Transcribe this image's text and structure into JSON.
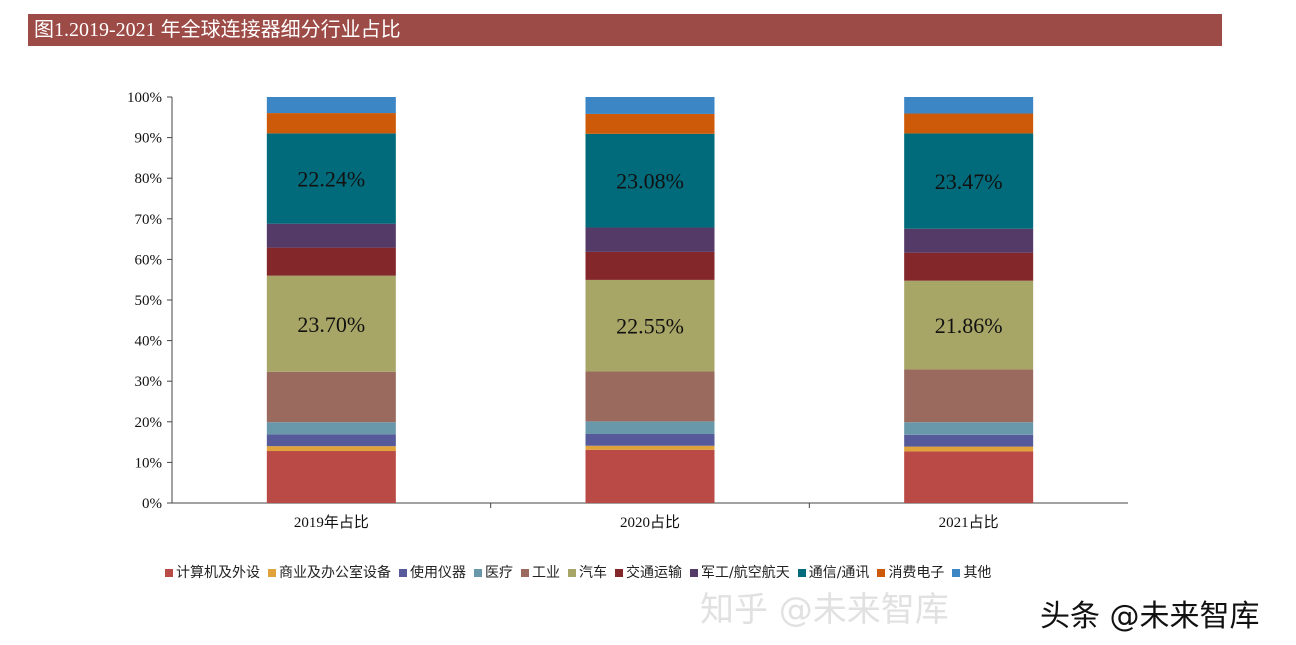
{
  "title": "图1.2019-2021 年全球连接器细分行业占比",
  "watermark": {
    "line1": "知乎 @未来智库",
    "line2": "头条 @未来智库"
  },
  "chart_data": {
    "type": "bar",
    "stacked": true,
    "title": "",
    "xlabel": "",
    "ylabel": "",
    "ylim": [
      0,
      100
    ],
    "y_ticks": [
      "0%",
      "10%",
      "20%",
      "30%",
      "40%",
      "50%",
      "60%",
      "70%",
      "80%",
      "90%",
      "100%"
    ],
    "categories": [
      "2019年占比",
      "2020占比",
      "2021占比"
    ],
    "legend_position": "bottom",
    "grid": false,
    "series": [
      {
        "name": "计算机及外设",
        "color": "#b94a45",
        "values": [
          12.8,
          13.1,
          12.7
        ]
      },
      {
        "name": "商业及办公室设备",
        "color": "#e0a23a",
        "values": [
          1.2,
          1.0,
          1.2
        ]
      },
      {
        "name": "使用仪器",
        "color": "#56599a",
        "values": [
          2.9,
          2.9,
          2.9
        ]
      },
      {
        "name": "医疗",
        "color": "#6a98ab",
        "values": [
          3.0,
          3.1,
          3.1
        ]
      },
      {
        "name": "工业",
        "color": "#996a5d",
        "values": [
          12.4,
          12.3,
          13.0
        ]
      },
      {
        "name": "汽车",
        "color": "#a8a666",
        "values": [
          23.7,
          22.55,
          21.86
        ],
        "labels": [
          "23.70%",
          "22.55%",
          "21.86%"
        ]
      },
      {
        "name": "交通运输",
        "color": "#83272b",
        "values": [
          6.9,
          6.9,
          6.9
        ]
      },
      {
        "name": "军工/航空航天",
        "color": "#533a67",
        "values": [
          5.9,
          6.0,
          5.9
        ]
      },
      {
        "name": "通信/通讯",
        "color": "#016b7b",
        "values": [
          22.24,
          23.08,
          23.47
        ],
        "labels": [
          "22.24%",
          "23.08%",
          "23.47%"
        ]
      },
      {
        "name": "消费电子",
        "color": "#cd5a08",
        "values": [
          5.0,
          4.9,
          4.9
        ]
      },
      {
        "name": "其他",
        "color": "#3c86c6",
        "values": [
          3.96,
          4.17,
          4.07
        ]
      }
    ]
  }
}
